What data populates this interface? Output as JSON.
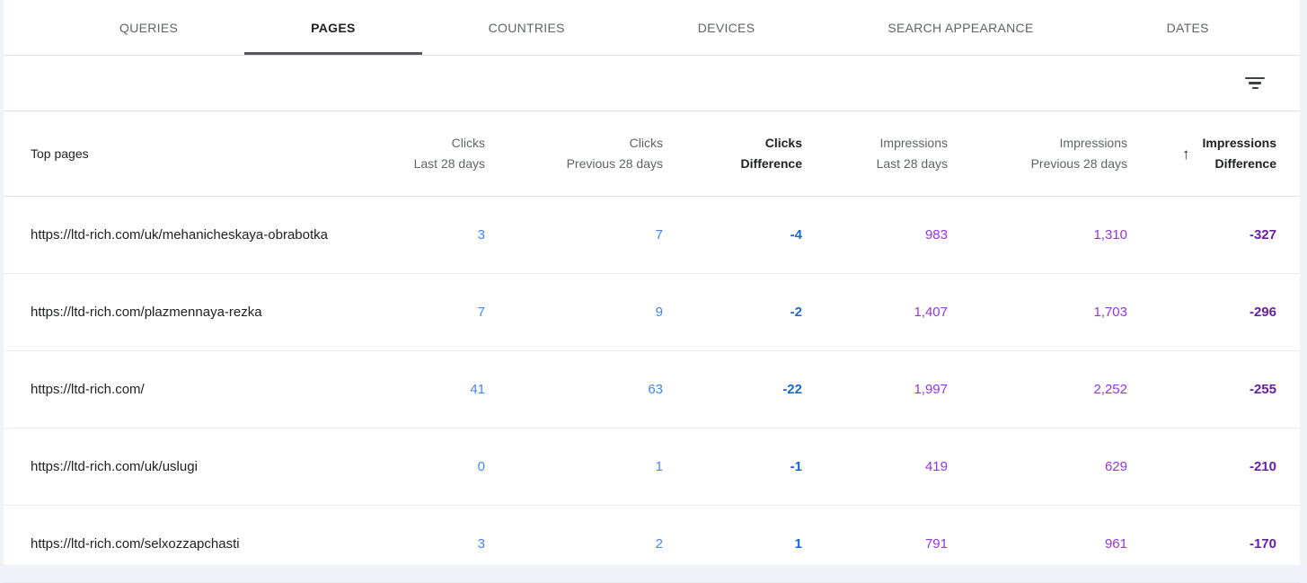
{
  "tabs": [
    {
      "label": "QUERIES",
      "active": false
    },
    {
      "label": "PAGES",
      "active": true
    },
    {
      "label": "COUNTRIES",
      "active": false
    },
    {
      "label": "DEVICES",
      "active": false
    },
    {
      "label": "SEARCH APPEARANCE",
      "active": false
    },
    {
      "label": "DATES",
      "active": false
    }
  ],
  "icons": {
    "filter": "filter-list-icon",
    "sort_ascending": "↑"
  },
  "colors": {
    "clicks": "#4285f4",
    "clicks-diff": "#1967d2",
    "impressions": "#9334e6",
    "impressions-diff": "#681da8"
  },
  "table": {
    "first_header": "Top pages",
    "columns": [
      {
        "line1": "Clicks",
        "line2": "Last 28 days",
        "bold": false
      },
      {
        "line1": "Clicks",
        "line2": "Previous 28 days",
        "bold": false
      },
      {
        "line1": "Clicks",
        "line2": "Difference",
        "bold": true
      },
      {
        "line1": "Impressions",
        "line2": "Last 28 days",
        "bold": false
      },
      {
        "line1": "Impressions",
        "line2": "Previous 28 days",
        "bold": false
      },
      {
        "line1": "Impressions",
        "line2": "Difference",
        "bold": true,
        "sorted": true,
        "sort_direction": "ascending"
      }
    ],
    "rows": [
      {
        "page": "https://ltd-rich.com/uk/mehanicheskaya-obrabotka",
        "clicks_last": "3",
        "clicks_prev": "7",
        "clicks_diff": "-4",
        "impr_last": "983",
        "impr_prev": "1,310",
        "impr_diff": "-327"
      },
      {
        "page": "https://ltd-rich.com/plazmennaya-rezka",
        "clicks_last": "7",
        "clicks_prev": "9",
        "clicks_diff": "-2",
        "impr_last": "1,407",
        "impr_prev": "1,703",
        "impr_diff": "-296"
      },
      {
        "page": "https://ltd-rich.com/",
        "clicks_last": "41",
        "clicks_prev": "63",
        "clicks_diff": "-22",
        "impr_last": "1,997",
        "impr_prev": "2,252",
        "impr_diff": "-255"
      },
      {
        "page": "https://ltd-rich.com/uk/uslugi",
        "clicks_last": "0",
        "clicks_prev": "1",
        "clicks_diff": "-1",
        "impr_last": "419",
        "impr_prev": "629",
        "impr_diff": "-210"
      },
      {
        "page": "https://ltd-rich.com/selxozzapchasti",
        "clicks_last": "3",
        "clicks_prev": "2",
        "clicks_diff": "1",
        "impr_last": "791",
        "impr_prev": "961",
        "impr_diff": "-170"
      }
    ]
  }
}
